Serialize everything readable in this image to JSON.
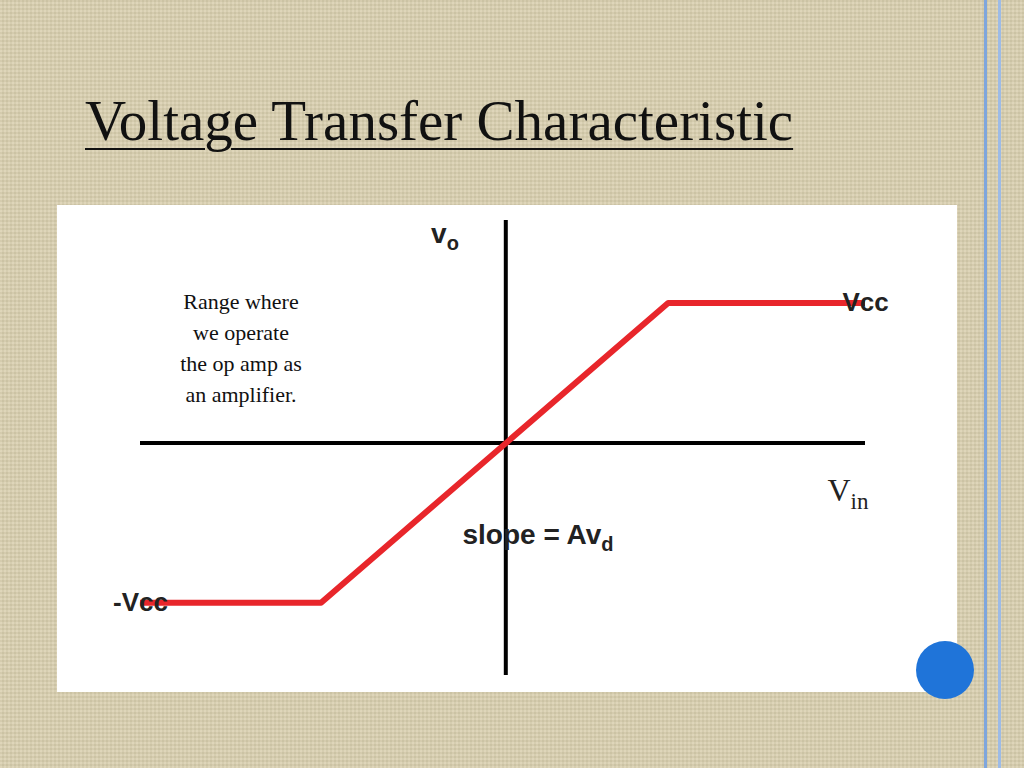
{
  "chart_data": {
    "type": "line",
    "title": "Voltage Transfer Characteristic",
    "xlabel": {
      "base": "V",
      "subscript": "in"
    },
    "ylabel": {
      "base": "v",
      "subscript": "o"
    },
    "x": [
      -2.61,
      -1.32,
      1.16,
      2.57
    ],
    "values": [
      -1.14,
      -1.14,
      1,
      1
    ],
    "color": "#e8262b",
    "xlim": [
      -2.61,
      2.57
    ],
    "ylim": [
      -1.66,
      1.59
    ],
    "xticks": [],
    "yticks": [],
    "tick_labels": false,
    "grid": false,
    "annotations": [
      {
        "text": "Vcc",
        "x": 2.57,
        "y": 1
      },
      {
        "text": "-Vcc",
        "x": -2.61,
        "y": -1.14
      },
      {
        "base": "slope = Av",
        "subscript": "d"
      },
      {
        "lines": [
          "Range where",
          "we operate",
          "the op amp as",
          "an amplifier."
        ]
      }
    ]
  }
}
